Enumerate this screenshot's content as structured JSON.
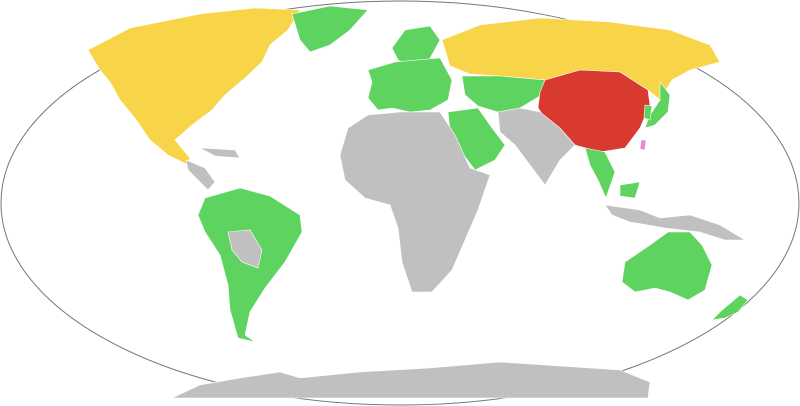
{
  "map": {
    "projection": "world-oval",
    "colors": {
      "red": "#d93a30",
      "yellow": "#f8d448",
      "green": "#5fd35f",
      "gray": "#c0c0c0",
      "pink": "#e58ad8",
      "outline": "#777777",
      "ocean": "#ffffff"
    },
    "regions": [
      {
        "name": "north-america",
        "category": "yellow"
      },
      {
        "name": "greenland",
        "category": "green"
      },
      {
        "name": "central-america",
        "category": "gray"
      },
      {
        "name": "south-america",
        "category": "green"
      },
      {
        "name": "bolivia-paraguay",
        "category": "gray"
      },
      {
        "name": "scandinavia",
        "category": "green"
      },
      {
        "name": "europe",
        "category": "green"
      },
      {
        "name": "russia",
        "category": "yellow"
      },
      {
        "name": "central-asia",
        "category": "green"
      },
      {
        "name": "china",
        "category": "red"
      },
      {
        "name": "taiwan",
        "category": "pink"
      },
      {
        "name": "middle-east",
        "category": "green"
      },
      {
        "name": "africa",
        "category": "gray"
      },
      {
        "name": "south-asia",
        "category": "gray"
      },
      {
        "name": "southeast-asia",
        "category": "green"
      },
      {
        "name": "indonesia",
        "category": "gray"
      },
      {
        "name": "japan",
        "category": "green"
      },
      {
        "name": "korea",
        "category": "green"
      },
      {
        "name": "australia",
        "category": "green"
      },
      {
        "name": "new-zealand",
        "category": "green"
      },
      {
        "name": "antarctica",
        "category": "gray"
      }
    ]
  }
}
